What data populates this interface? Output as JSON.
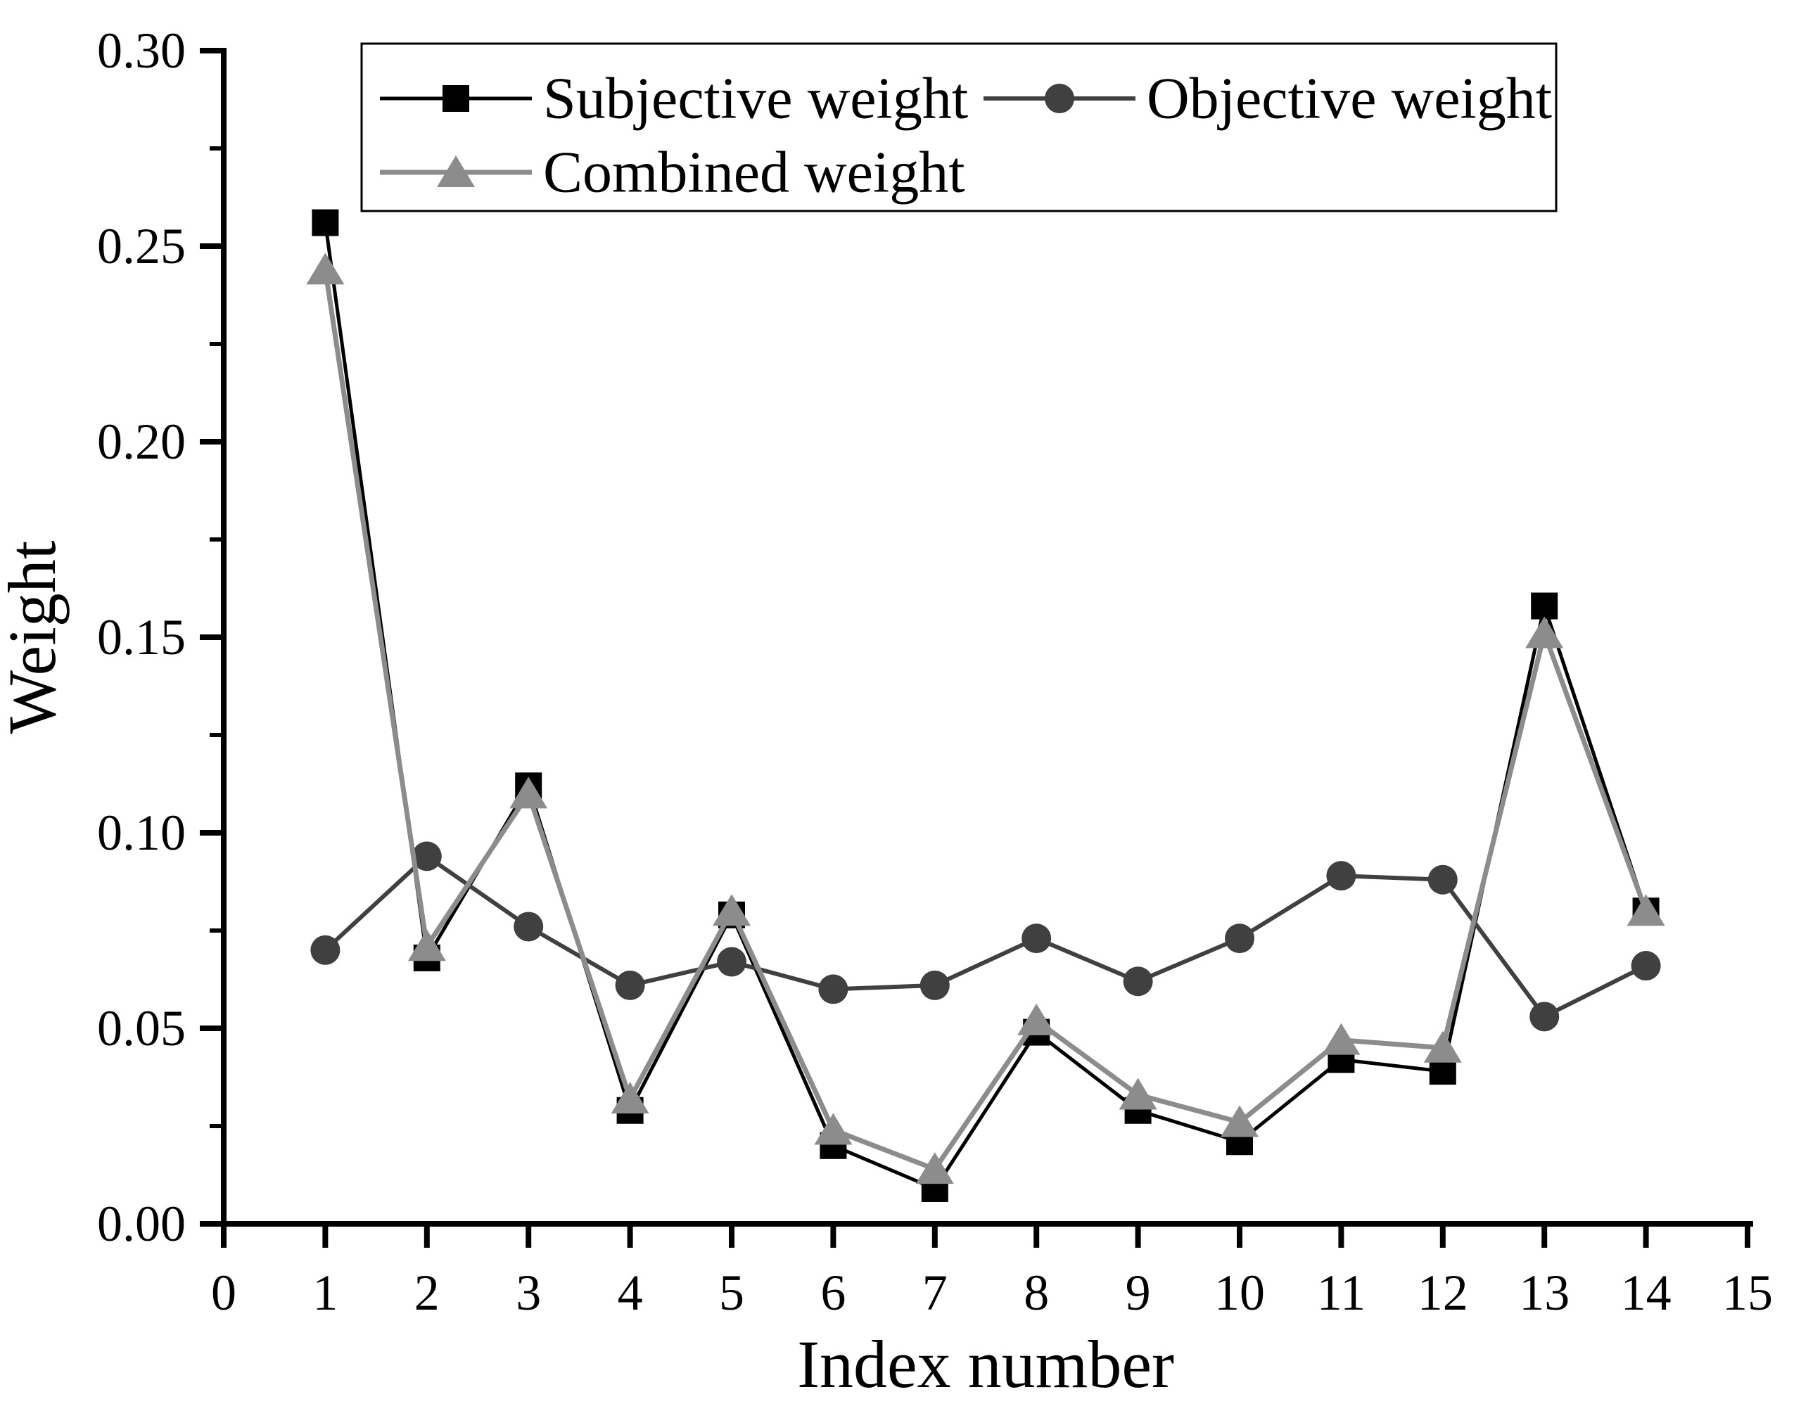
{
  "chart_data": {
    "type": "line",
    "title": "",
    "xlabel": "Index number",
    "ylabel": "Weight",
    "x": [
      1,
      2,
      3,
      4,
      5,
      6,
      7,
      8,
      9,
      10,
      11,
      12,
      13,
      14
    ],
    "series": [
      {
        "name": "Subjective weight",
        "marker": "square",
        "color": "#000000",
        "line_width": 5,
        "values": [
          0.256,
          0.068,
          0.112,
          0.029,
          0.079,
          0.02,
          0.009,
          0.049,
          0.029,
          0.021,
          0.042,
          0.039,
          0.158,
          0.08
        ]
      },
      {
        "name": "Objective weight",
        "marker": "circle",
        "color": "#404040",
        "line_width": 6,
        "values": [
          0.07,
          0.094,
          0.076,
          0.061,
          0.067,
          0.06,
          0.061,
          0.073,
          0.062,
          0.073,
          0.089,
          0.088,
          0.053,
          0.066
        ]
      },
      {
        "name": "Combined weight",
        "marker": "triangle",
        "color": "#8c8c8c",
        "line_width": 7,
        "values": [
          0.244,
          0.071,
          0.11,
          0.032,
          0.08,
          0.024,
          0.014,
          0.052,
          0.033,
          0.026,
          0.047,
          0.045,
          0.151,
          0.08
        ]
      }
    ],
    "xlim": [
      0,
      15
    ],
    "ylim": [
      0.0,
      0.3
    ],
    "x_ticks": [
      "0",
      "1",
      "2",
      "3",
      "4",
      "5",
      "6",
      "7",
      "8",
      "9",
      "10",
      "11",
      "12",
      "13",
      "14",
      "15"
    ],
    "y_ticks": [
      {
        "value": 0.0,
        "label": "0.00"
      },
      {
        "value": 0.05,
        "label": "0.05"
      },
      {
        "value": 0.1,
        "label": "0.10"
      },
      {
        "value": 0.15,
        "label": "0.15"
      },
      {
        "value": 0.2,
        "label": "0.20"
      },
      {
        "value": 0.25,
        "label": "0.25"
      },
      {
        "value": 0.3,
        "label": "0.30"
      }
    ],
    "y_minor_ticks": [
      0.025,
      0.075,
      0.125,
      0.175,
      0.225,
      0.275
    ],
    "grid": false,
    "legend": {
      "position": "inside-top",
      "entries": [
        "Subjective weight",
        "Objective weight",
        "Combined weight"
      ]
    },
    "axis_color": "#000000",
    "background_color": "#ffffff"
  }
}
